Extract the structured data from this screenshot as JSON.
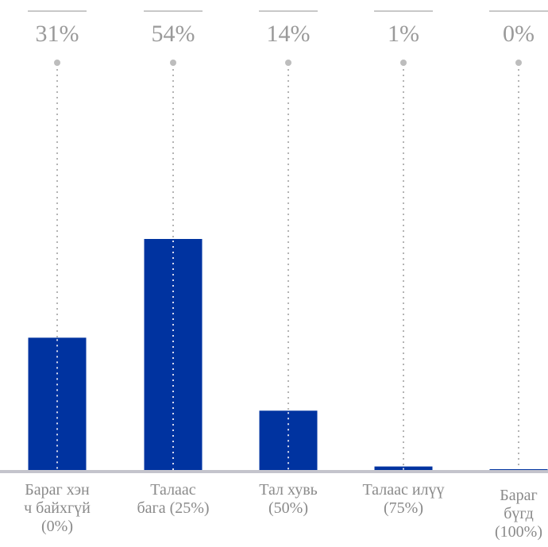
{
  "chart_data": {
    "type": "bar",
    "title": "",
    "xlabel": "",
    "ylabel": "",
    "ylim": [
      0,
      54
    ],
    "grid": false,
    "legend": "none",
    "categories": [
      [
        "Бараг хэн",
        "ч байхгүй",
        "(0%)"
      ],
      [
        "Талаас",
        "бага (25%)"
      ],
      [
        "Тал хувь",
        "(50%)"
      ],
      [
        "Талаас илүү",
        "(75%)"
      ],
      [
        "Бараг",
        "бүгд",
        "(100%)"
      ]
    ],
    "values": [
      31,
      54,
      14,
      1,
      0
    ],
    "value_labels": [
      "31%",
      "54%",
      "14%",
      "1%",
      "0%"
    ],
    "colors": {
      "bar": "#0033a0",
      "baseline": "#c4c4cc",
      "label": "#9a9a9a",
      "category": "#8a8a8a",
      "topline": "#c8c8c8",
      "dot": "#bdbdbd",
      "guide": "#b4b4b4"
    }
  }
}
